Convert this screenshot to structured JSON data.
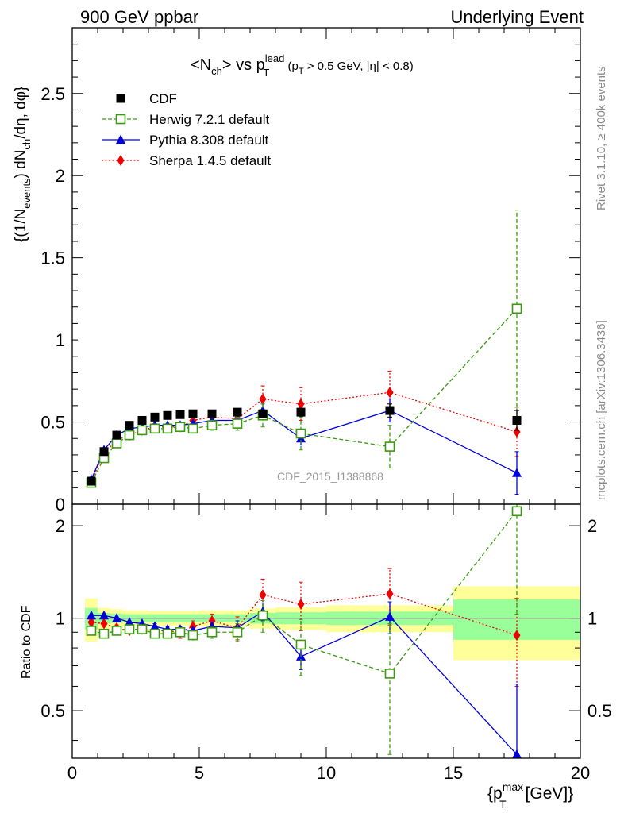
{
  "header": {
    "left": "900 GeV ppbar",
    "right": "Underlying Event"
  },
  "side_labels": {
    "rivet": "Rivet 3.1.10, ≥ 400k events",
    "mcplots": "mcplots.cern.ch [arXiv:1306.3436]"
  },
  "watermark": "CDF_2015_I1388868",
  "colors": {
    "CDF": "#000000",
    "Herwig": "#3a9a0e",
    "Pythia": "#0000dd",
    "Sherpa": "#ee0000",
    "band_yellow": "#ffff99",
    "band_green": "#99ff99"
  },
  "chart_data": [
    {
      "type": "scatter",
      "panel": "main",
      "title": "<N_ch> vs p_T^lead (p_T > 0.5 GeV, |η| < 0.8)",
      "title_parts": {
        "main": "<N",
        "sub1": "ch",
        "mid": "> vs p",
        "sup": "lead",
        "sub2": "T",
        "tail1": " (p",
        "sub3": "T",
        "tail2": " > 0.5 GeV, |η| < 0.8)"
      },
      "ylabel": "{(1/N_events) dN_ch/dη, dφ}",
      "ylabel_parts": {
        "a": "{(1/N",
        "b": "events",
        "c": ") dN",
        "d": "ch",
        "e": "/dη, dφ}"
      },
      "xlim": [
        0,
        20
      ],
      "ylim": [
        0,
        2.9
      ],
      "ytick_labels": [
        "0",
        "0.5",
        "1",
        "1.5",
        "2",
        "2.5"
      ],
      "series": [
        {
          "name": "CDF",
          "x": [
            0.75,
            1.25,
            1.75,
            2.25,
            2.75,
            3.25,
            3.75,
            4.25,
            4.75,
            5.5,
            6.5,
            7.5,
            9,
            12.5,
            17.5
          ],
          "y": [
            0.14,
            0.32,
            0.42,
            0.48,
            0.51,
            0.53,
            0.54,
            0.545,
            0.55,
            0.55,
            0.56,
            0.55,
            0.56,
            0.57,
            0.51
          ],
          "err": [
            0.01,
            0.01,
            0.01,
            0.01,
            0.01,
            0.01,
            0.01,
            0.01,
            0.01,
            0.01,
            0.015,
            0.02,
            0.025,
            0.04,
            0.06
          ]
        },
        {
          "name": "Herwig 7.2.1 default",
          "x": [
            0.75,
            1.25,
            1.75,
            2.25,
            2.75,
            3.25,
            3.75,
            4.25,
            4.75,
            5.5,
            6.5,
            7.5,
            9,
            12.5,
            17.5
          ],
          "y": [
            0.13,
            0.28,
            0.37,
            0.42,
            0.45,
            0.46,
            0.46,
            0.47,
            0.46,
            0.48,
            0.49,
            0.54,
            0.43,
            0.35,
            1.19
          ],
          "err": [
            0.01,
            0.01,
            0.01,
            0.01,
            0.01,
            0.015,
            0.015,
            0.02,
            0.02,
            0.03,
            0.04,
            0.07,
            0.1,
            0.13,
            0.6
          ]
        },
        {
          "name": "Pythia 8.308 default",
          "x": [
            0.75,
            1.25,
            1.75,
            2.25,
            2.75,
            3.25,
            3.75,
            4.25,
            4.75,
            5.5,
            6.5,
            7.5,
            9,
            12.5,
            17.5
          ],
          "y": [
            0.15,
            0.33,
            0.42,
            0.46,
            0.47,
            0.48,
            0.48,
            0.48,
            0.49,
            0.51,
            0.51,
            0.57,
            0.4,
            0.57,
            0.19
          ],
          "err": [
            0.005,
            0.005,
            0.005,
            0.005,
            0.005,
            0.01,
            0.01,
            0.01,
            0.015,
            0.02,
            0.03,
            0.04,
            0.04,
            0.07,
            0.13
          ]
        },
        {
          "name": "Sherpa 1.4.5 default",
          "x": [
            0.75,
            1.25,
            1.75,
            2.25,
            2.75,
            3.25,
            3.75,
            4.25,
            4.75,
            5.5,
            6.5,
            7.5,
            9,
            12.5,
            17.5
          ],
          "y": [
            0.14,
            0.31,
            0.39,
            0.42,
            0.45,
            0.47,
            0.47,
            0.47,
            0.51,
            0.53,
            0.52,
            0.64,
            0.61,
            0.68,
            0.44
          ],
          "err": [
            0.01,
            0.01,
            0.01,
            0.01,
            0.01,
            0.015,
            0.015,
            0.02,
            0.025,
            0.03,
            0.04,
            0.08,
            0.1,
            0.13,
            0.15
          ]
        }
      ]
    },
    {
      "type": "scatter",
      "panel": "ratio",
      "ylabel": "Ratio to CDF",
      "xlabel": "{p_T^max [GeV]}",
      "xlabel_parts": {
        "a": "{p",
        "sup": "max",
        "sub": "T",
        "b": " [GeV]}"
      },
      "xlim": [
        0,
        20
      ],
      "ylim": [
        0.35,
        2.35
      ],
      "xtick_labels": [
        "0",
        "5",
        "10",
        "15",
        "20"
      ],
      "ytick_labels": [
        "0.5",
        "1",
        "2"
      ],
      "reference_line": 1,
      "bands": {
        "edges": [
          0.5,
          1,
          1.5,
          2,
          2.5,
          3,
          3.5,
          4,
          4.5,
          5,
          6,
          7,
          8,
          10,
          15,
          20
        ],
        "yellow": [
          0.16,
          0.08,
          0.07,
          0.06,
          0.06,
          0.055,
          0.055,
          0.055,
          0.055,
          0.06,
          0.06,
          0.075,
          0.085,
          0.1,
          0.27
        ],
        "green": [
          0.08,
          0.04,
          0.035,
          0.03,
          0.03,
          0.03,
          0.03,
          0.03,
          0.03,
          0.03,
          0.03,
          0.04,
          0.045,
          0.05,
          0.15
        ]
      },
      "series": [
        {
          "name": "Herwig 7.2.1 default",
          "x": [
            0.75,
            1.25,
            1.75,
            2.25,
            2.75,
            3.25,
            3.75,
            4.25,
            4.75,
            5.5,
            6.5,
            7.5,
            9,
            12.5,
            17.5
          ],
          "y": [
            0.91,
            0.89,
            0.91,
            0.92,
            0.92,
            0.89,
            0.89,
            0.9,
            0.88,
            0.9,
            0.9,
            1.02,
            0.82,
            0.66,
            2.23
          ],
          "err": [
            0.02,
            0.02,
            0.02,
            0.02,
            0.02,
            0.02,
            0.02,
            0.03,
            0.03,
            0.04,
            0.06,
            0.12,
            0.17,
            0.3,
            1.2
          ]
        },
        {
          "name": "Pythia 8.308 default",
          "x": [
            0.75,
            1.25,
            1.75,
            2.25,
            2.75,
            3.25,
            3.75,
            4.25,
            4.75,
            5.5,
            6.5,
            7.5,
            9,
            12.5,
            17.5
          ],
          "y": [
            1.02,
            1.02,
            1.0,
            0.97,
            0.96,
            0.94,
            0.92,
            0.92,
            0.91,
            0.94,
            0.93,
            1.05,
            0.75,
            1.01,
            0.36
          ],
          "err": [
            0.01,
            0.01,
            0.01,
            0.01,
            0.01,
            0.02,
            0.02,
            0.02,
            0.02,
            0.03,
            0.05,
            0.07,
            0.07,
            0.12,
            0.25
          ]
        },
        {
          "name": "Sherpa 1.4.5 default",
          "x": [
            0.75,
            1.25,
            1.75,
            2.25,
            2.75,
            3.25,
            3.75,
            4.25,
            4.75,
            5.5,
            6.5,
            7.5,
            9,
            12.5,
            17.5
          ],
          "y": [
            0.97,
            0.96,
            0.93,
            0.91,
            0.92,
            0.91,
            0.91,
            0.9,
            0.94,
            0.98,
            0.93,
            1.19,
            1.11,
            1.2,
            0.88
          ],
          "err": [
            0.02,
            0.02,
            0.02,
            0.02,
            0.02,
            0.03,
            0.03,
            0.04,
            0.04,
            0.05,
            0.08,
            0.15,
            0.2,
            0.25,
            0.28
          ]
        }
      ]
    }
  ]
}
